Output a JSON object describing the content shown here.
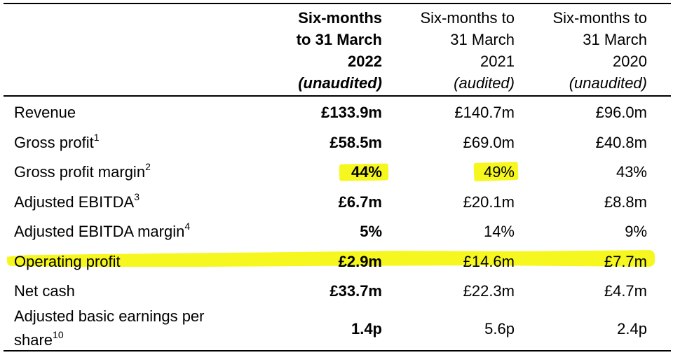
{
  "header": {
    "col1": {
      "lines": [
        "Six-months",
        "to 31 March",
        "2022"
      ],
      "status": "(unaudited)"
    },
    "col2": {
      "lines": [
        "Six-months to",
        "31 March",
        "2021"
      ],
      "status": "(audited)"
    },
    "col3": {
      "lines": [
        "Six-months to",
        "31 March",
        "2020"
      ],
      "status": "(unaudited)"
    }
  },
  "rows": [
    {
      "label": "Revenue",
      "sup": "",
      "values": [
        "£133.9m",
        "£140.7m",
        "£96.0m"
      ]
    },
    {
      "label": "Gross profit",
      "sup": "1",
      "values": [
        "£58.5m",
        "£69.0m",
        "£40.8m"
      ]
    },
    {
      "label": "Gross profit margin",
      "sup": "2",
      "values": [
        "44%",
        "49%",
        "43%"
      ]
    },
    {
      "label": "Adjusted EBITDA",
      "sup": "3",
      "values": [
        "£6.7m",
        "£20.1m",
        "£8.8m"
      ]
    },
    {
      "label": "Adjusted EBITDA margin",
      "sup": "4",
      "values": [
        "5%",
        "14%",
        "9%"
      ]
    },
    {
      "label": "Operating profit",
      "sup": "",
      "values": [
        "£2.9m",
        "£14.6m",
        "£7.7m"
      ]
    },
    {
      "label": "Net cash",
      "sup": "",
      "values": [
        "£33.7m",
        "£22.3m",
        "£4.7m"
      ]
    },
    {
      "label_line1": "Adjusted basic earnings per",
      "label_line2": "share",
      "sup": "10",
      "values": [
        "1.4p",
        "5.6p",
        "2.4p"
      ]
    }
  ],
  "highlight_color": "#f7f720"
}
